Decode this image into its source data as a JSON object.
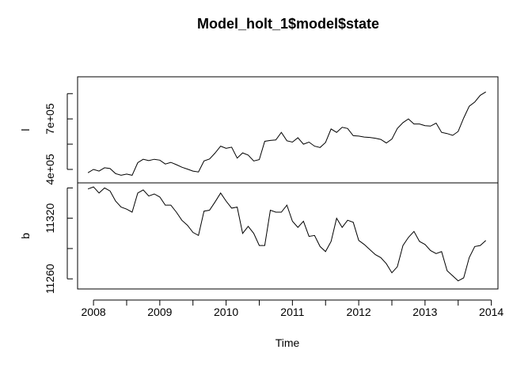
{
  "chart_data": {
    "type": "line",
    "title": "Model_holt_1$model$state",
    "xlabel": "Time",
    "x_ticks": [
      "2008",
      "2009",
      "2010",
      "2011",
      "2012",
      "2013",
      "2014"
    ],
    "x": [
      2007.917,
      2008.0,
      2008.083,
      2008.167,
      2008.25,
      2008.333,
      2008.417,
      2008.5,
      2008.583,
      2008.667,
      2008.75,
      2008.833,
      2008.917,
      2009.0,
      2009.083,
      2009.167,
      2009.25,
      2009.333,
      2009.417,
      2009.5,
      2009.583,
      2009.667,
      2009.75,
      2009.833,
      2009.917,
      2010.0,
      2010.083,
      2010.167,
      2010.25,
      2010.333,
      2010.417,
      2010.5,
      2010.583,
      2010.667,
      2010.75,
      2010.833,
      2010.917,
      2011.0,
      2011.083,
      2011.167,
      2011.25,
      2011.333,
      2011.417,
      2011.5,
      2011.583,
      2011.667,
      2011.75,
      2011.833,
      2011.917,
      2012.0,
      2012.083,
      2012.167,
      2012.25,
      2012.333,
      2012.417,
      2012.5,
      2012.583,
      2012.667,
      2012.75,
      2012.833,
      2012.917,
      2013.0,
      2013.083,
      2013.167,
      2013.25,
      2013.333,
      2013.417,
      2013.5,
      2013.583,
      2013.667,
      2013.75,
      2013.833,
      2013.917
    ],
    "panels": [
      {
        "name": "l",
        "ylabel": "l",
        "y_ticks": [
          {
            "value": 400000,
            "label": "4e+05"
          },
          {
            "value": 700000,
            "label": "7e+05"
          }
        ],
        "ylim": [
          320000,
          950000
        ],
        "values": [
          380000,
          400000,
          390000,
          410000,
          405000,
          375000,
          365000,
          372000,
          365000,
          440000,
          460000,
          452000,
          460000,
          455000,
          432000,
          442000,
          428000,
          413000,
          402000,
          390000,
          385000,
          450000,
          462000,
          497000,
          538000,
          525000,
          532000,
          467000,
          498000,
          485000,
          450000,
          458000,
          567000,
          572000,
          575000,
          620000,
          570000,
          562000,
          588000,
          550000,
          562000,
          538000,
          530000,
          560000,
          640000,
          620000,
          650000,
          643000,
          600000,
          598000,
          592000,
          590000,
          585000,
          578000,
          557000,
          580000,
          643000,
          678000,
          700000,
          670000,
          670000,
          660000,
          657000,
          675000,
          620000,
          613000,
          602000,
          625000,
          705000,
          775000,
          800000,
          840000,
          860000
        ]
      },
      {
        "name": "b",
        "ylabel": "b",
        "y_ticks": [
          {
            "value": 11260,
            "label": "11260"
          },
          {
            "value": 11320,
            "label": "11320"
          }
        ],
        "ylim": [
          11250,
          11355
        ],
        "values": [
          11349,
          11351,
          11345,
          11350,
          11347,
          11337,
          11331,
          11329,
          11326,
          11345,
          11348,
          11342,
          11344,
          11341,
          11333,
          11333,
          11326,
          11318,
          11313,
          11306,
          11303,
          11327,
          11328,
          11336,
          11345,
          11337,
          11330,
          11331,
          11305,
          11312,
          11305,
          11293,
          11293,
          11328,
          11326,
          11326,
          11333,
          11317,
          11311,
          11317,
          11302,
          11303,
          11292,
          11287,
          11297,
          11320,
          11311,
          11318,
          11316,
          11298,
          11294,
          11289,
          11284,
          11281,
          11275,
          11266,
          11272,
          11293,
          11301,
          11307,
          11297,
          11294,
          11288,
          11285,
          11287,
          11268,
          11263,
          11258,
          11261,
          11281,
          11292,
          11293,
          11298
        ]
      }
    ],
    "grid": false,
    "legend": "none"
  }
}
